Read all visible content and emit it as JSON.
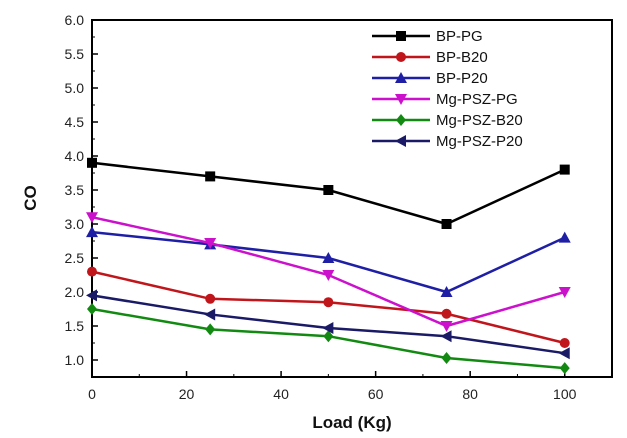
{
  "chart_data": {
    "type": "line",
    "title": "",
    "xlabel": "Load (Kg)",
    "ylabel": "CO",
    "xlim": [
      0,
      110
    ],
    "ylim": [
      0.75,
      6.0
    ],
    "x_ticks": [
      "0",
      "20",
      "40",
      "60",
      "80",
      "100"
    ],
    "y_ticks": [
      "1.0",
      "1.5",
      "2.0",
      "2.5",
      "3.0",
      "3.5",
      "4.0",
      "4.5",
      "5.0",
      "5.5",
      "6.0"
    ],
    "legend_position": "top-right",
    "grid": false,
    "x": [
      0,
      25,
      50,
      75,
      100
    ],
    "series": [
      {
        "name": "BP-PG",
        "color": "#000000",
        "marker": "square",
        "values": [
          3.9,
          3.7,
          3.5,
          3.0,
          3.8
        ]
      },
      {
        "name": "BP-B20",
        "color": "#c0161b",
        "marker": "circle",
        "values": [
          2.3,
          1.9,
          1.85,
          1.68,
          1.25
        ]
      },
      {
        "name": "BP-P20",
        "color": "#1f1fa6",
        "marker": "triangle-up",
        "values": [
          2.88,
          2.7,
          2.5,
          2.0,
          2.8
        ]
      },
      {
        "name": "Mg-PSZ-PG",
        "color": "#cc11cc",
        "marker": "triangle-down",
        "values": [
          3.1,
          2.72,
          2.25,
          1.5,
          2.0
        ]
      },
      {
        "name": "Mg-PSZ-B20",
        "color": "#128a12",
        "marker": "diamond",
        "values": [
          1.75,
          1.45,
          1.35,
          1.03,
          0.88
        ]
      },
      {
        "name": "Mg-PSZ-P20",
        "color": "#1a1a66",
        "marker": "triangle-left",
        "values": [
          1.95,
          1.67,
          1.47,
          1.35,
          1.1
        ]
      }
    ]
  }
}
